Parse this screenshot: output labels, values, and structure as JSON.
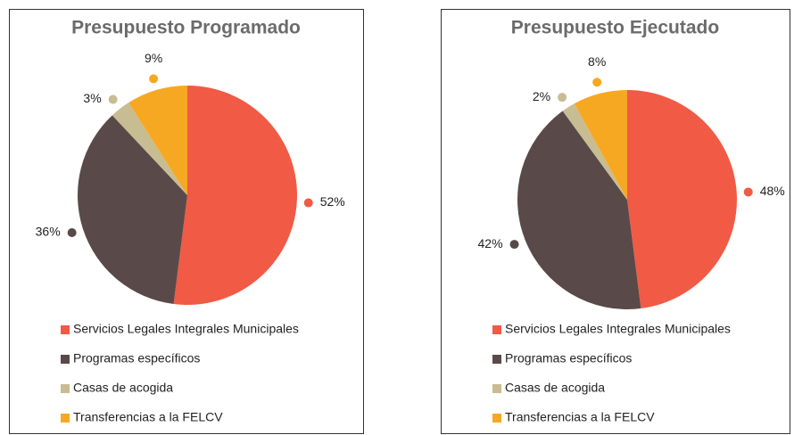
{
  "chart_data": [
    {
      "type": "pie",
      "title": "Presupuesto Programado",
      "categories": [
        "Servicios Legales Integrales Municipales",
        "Programas específicos",
        "Casas de acogida",
        "Transferencias a la FELCV"
      ],
      "values": [
        52,
        36,
        3,
        9
      ],
      "value_labels": [
        "52%",
        "36%",
        "3%",
        "9%"
      ],
      "colors": [
        "#f15a45",
        "#594a49",
        "#c8bc92",
        "#f7a823"
      ]
    },
    {
      "type": "pie",
      "title": "Presupuesto Ejecutado",
      "categories": [
        "Servicios Legales Integrales Municipales",
        "Programas específicos",
        "Casas de acogida",
        "Transferencias a la FELCV"
      ],
      "values": [
        48,
        42,
        2,
        8
      ],
      "value_labels": [
        "48%",
        "42%",
        "2%",
        "8%"
      ],
      "colors": [
        "#f15a45",
        "#594a49",
        "#c8bc92",
        "#f7a823"
      ]
    }
  ]
}
